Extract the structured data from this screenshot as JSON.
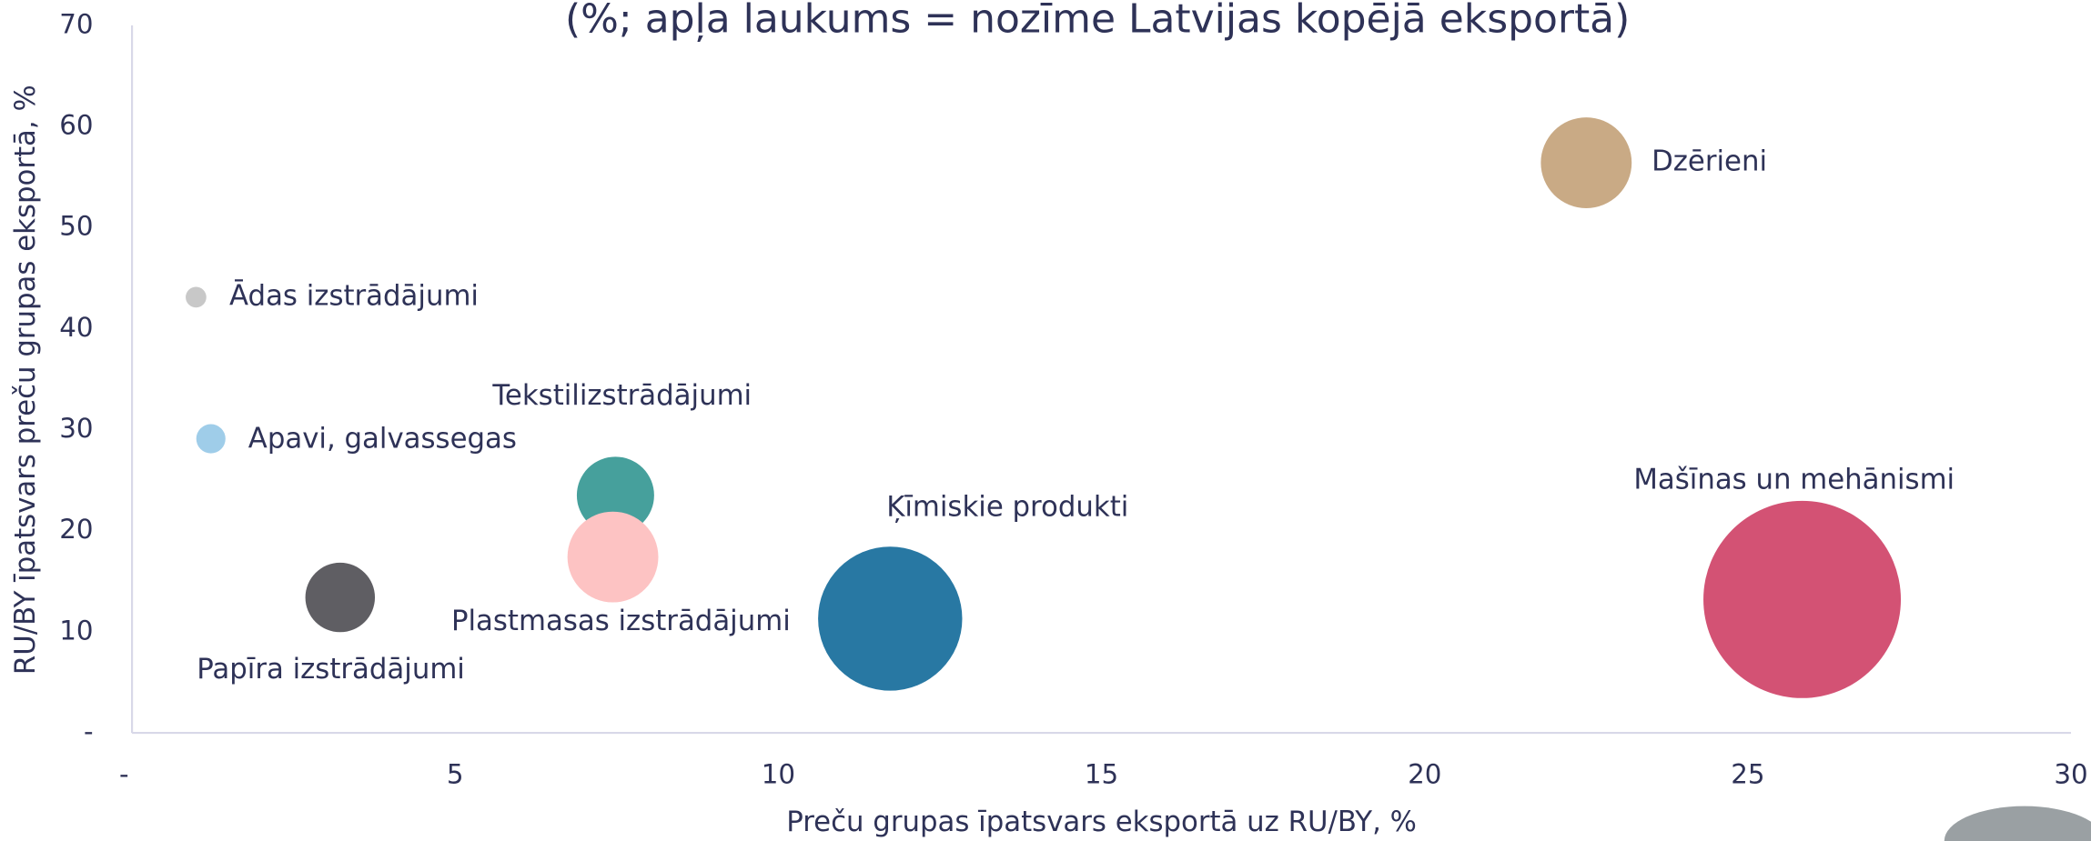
{
  "chart_data": {
    "type": "bubble",
    "title": "(%; apļa laukums = nozīme Latvijas kopējā eksportā)",
    "x_label": "Preču grupas īpatsvars eksportā uz RU/BY, %",
    "y_label": "RU/BY īpatsvars preču grupas eksportā, %",
    "xlim": [
      0,
      30
    ],
    "ylim": [
      0,
      70
    ],
    "xticks": [
      {
        "value": 0,
        "label": "-"
      },
      5,
      10,
      15,
      20,
      25,
      30
    ],
    "yticks": [
      {
        "value": 0,
        "label": "-"
      },
      10,
      20,
      30,
      40,
      50,
      60,
      70
    ],
    "grid": false,
    "series": [
      {
        "name": "Ādas izstrādājumi",
        "color": "#c8c8c8",
        "x": [
          0.99
        ],
        "values": [
          43.1
        ],
        "sizes": [
          0.6
        ]
      },
      {
        "name": "Apavi, galvassegas",
        "color": "#9fcde9",
        "x": [
          1.22
        ],
        "values": [
          29.1
        ],
        "sizes": [
          1.2
        ]
      },
      {
        "name": "Papīra izstrādājumi",
        "color": "#5f5e63",
        "x": [
          3.22
        ],
        "values": [
          13.4
        ],
        "sizes": [
          6.8
        ]
      },
      {
        "name": "Tekstilizstrādājumi",
        "color": "#46a09c",
        "x": [
          7.48
        ],
        "values": [
          23.5
        ],
        "sizes": [
          8.4
        ]
      },
      {
        "name": "Plastmasas izstrādājumi",
        "color": "#fdc3c3",
        "x": [
          7.44
        ],
        "values": [
          17.4
        ],
        "sizes": [
          11.6
        ]
      },
      {
        "name": "Ķīmiskie produkti",
        "color": "#2878a3",
        "x": [
          11.73
        ],
        "values": [
          11.3
        ],
        "sizes": [
          29.2
        ]
      },
      {
        "name": "Mašīnas un mehānismi",
        "color": "#d35274",
        "x": [
          25.84
        ],
        "values": [
          13.2
        ],
        "sizes": [
          54.8
        ]
      },
      {
        "name": "Dzērieni",
        "color": "#c9aa85",
        "x": [
          22.5
        ],
        "values": [
          56.4
        ],
        "sizes": [
          11.6
        ]
      }
    ]
  }
}
